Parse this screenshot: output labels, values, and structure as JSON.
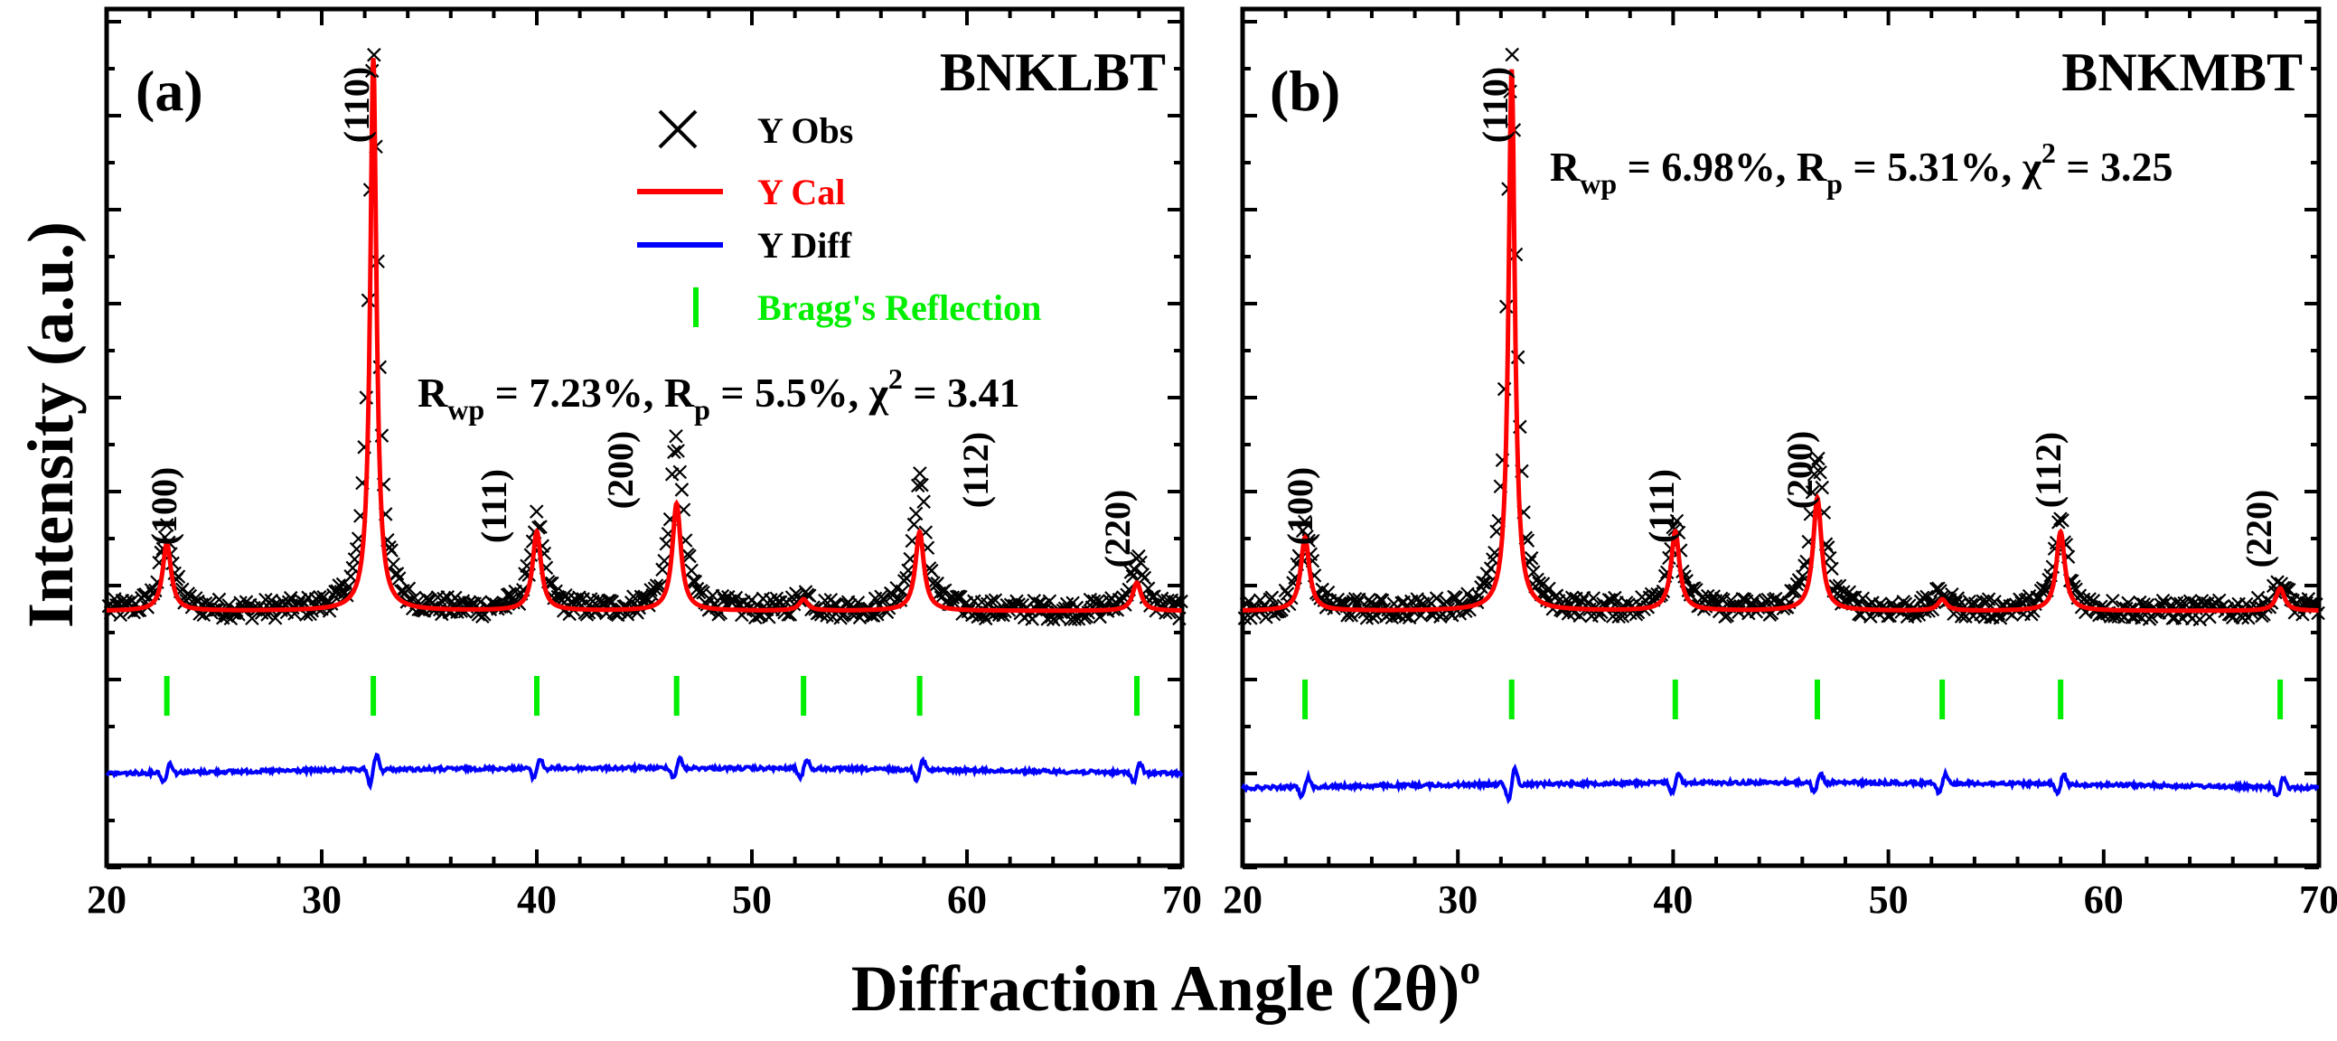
{
  "colors": {
    "obs": "#000000",
    "cal": "#ff0000",
    "diff": "#0000ff",
    "bragg": "#00ee00"
  },
  "axes": {
    "xlabel": "Diffraction Angle (2θ)",
    "xlabel_sup": "o",
    "ylabel": "Intensity (a.u.)"
  },
  "legend": {
    "obs": "Y Obs",
    "cal": "Y Cal",
    "diff": "Y Diff",
    "bragg": "Bragg's Reflection"
  },
  "panels": [
    {
      "panel_label": "(a)",
      "sample": "BNKLBT",
      "stats": {
        "rwp_val": " = 7.23%, R",
        "rp_val": " = 5.5%, χ",
        "chi_val": " = 3.41"
      },
      "hkl_labels": [
        "(100)",
        "(110)",
        "(111)",
        "(200)",
        "(112)",
        "(220)"
      ]
    },
    {
      "panel_label": "(b)",
      "sample": "BNKMBT",
      "stats": {
        "rwp_val": " = 6.98%, R",
        "rp_val": " = 5.31%, χ",
        "chi_val": " = 3.25"
      },
      "hkl_labels": [
        "(100)",
        "(110)",
        "(111)",
        "(200)",
        "(112)",
        "(220)"
      ]
    }
  ],
  "chart_data": [
    {
      "type": "line",
      "title": "BNKLBT",
      "xlabel": "Diffraction Angle (2θ)°",
      "ylabel": "Intensity (a.u.)",
      "xlim": [
        20,
        70
      ],
      "xticks": [
        20,
        30,
        40,
        50,
        60,
        70
      ],
      "rwp": 7.23,
      "rp": 5.5,
      "chi2": 3.41,
      "peaks": [
        {
          "hkl": "(100)",
          "x": 22.8,
          "y_obs": 0.14,
          "y_cal": 0.12
        },
        {
          "hkl": "(110)",
          "x": 32.4,
          "y_obs": 1.0,
          "y_cal": 0.98
        },
        {
          "hkl": "(111)",
          "x": 40.0,
          "y_obs": 0.16,
          "y_cal": 0.14
        },
        {
          "hkl": "(200)",
          "x": 46.5,
          "y_obs": 0.3,
          "y_cal": 0.19
        },
        {
          "hkl": "",
          "x": 52.4,
          "y_obs": 0.03,
          "y_cal": 0.02
        },
        {
          "hkl": "(112)",
          "x": 57.8,
          "y_obs": 0.23,
          "y_cal": 0.14
        },
        {
          "hkl": "(220)",
          "x": 67.9,
          "y_obs": 0.09,
          "y_cal": 0.05
        }
      ],
      "bragg_positions": [
        22.8,
        32.4,
        40.0,
        46.5,
        52.4,
        57.8,
        67.9
      ],
      "series": [
        {
          "name": "Y Obs",
          "style": "markers"
        },
        {
          "name": "Y Cal",
          "style": "line"
        },
        {
          "name": "Y Diff",
          "style": "line"
        },
        {
          "name": "Bragg's Reflection",
          "style": "ticks"
        }
      ]
    },
    {
      "type": "line",
      "title": "BNKMBT",
      "xlabel": "Diffraction Angle (2θ)°",
      "ylabel": "Intensity (a.u.)",
      "xlim": [
        20,
        70
      ],
      "xticks": [
        20,
        30,
        40,
        50,
        60,
        70
      ],
      "rwp": 6.98,
      "rp": 5.31,
      "chi2": 3.25,
      "peaks": [
        {
          "hkl": "(100)",
          "x": 22.9,
          "y_obs": 0.14,
          "y_cal": 0.13
        },
        {
          "hkl": "(110)",
          "x": 32.5,
          "y_obs": 1.0,
          "y_cal": 0.96
        },
        {
          "hkl": "(111)",
          "x": 40.1,
          "y_obs": 0.16,
          "y_cal": 0.14
        },
        {
          "hkl": "(200)",
          "x": 46.7,
          "y_obs": 0.28,
          "y_cal": 0.2
        },
        {
          "hkl": "",
          "x": 52.5,
          "y_obs": 0.03,
          "y_cal": 0.02
        },
        {
          "hkl": "(112)",
          "x": 58.0,
          "y_obs": 0.16,
          "y_cal": 0.14
        },
        {
          "hkl": "(220)",
          "x": 68.2,
          "y_obs": 0.05,
          "y_cal": 0.04
        }
      ],
      "bragg_positions": [
        22.9,
        32.5,
        40.1,
        46.7,
        52.5,
        58.0,
        68.2
      ],
      "series": [
        {
          "name": "Y Obs",
          "style": "markers"
        },
        {
          "name": "Y Cal",
          "style": "line"
        },
        {
          "name": "Y Diff",
          "style": "line"
        },
        {
          "name": "Bragg's Reflection",
          "style": "ticks"
        }
      ]
    }
  ]
}
